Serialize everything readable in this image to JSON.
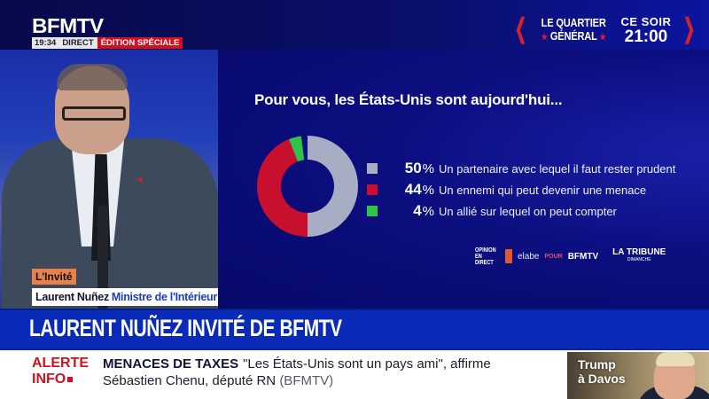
{
  "header": {
    "logo": "BFMTV",
    "time": "19:34",
    "live_label": "DIRECT",
    "edition_label": "ÉDITION SPÉCIALE",
    "promo": {
      "show_line1": "LE QUARTIER",
      "show_line2": "GÉNÉRAL",
      "when_line1": "CE SOIR",
      "when_line2": "21:00",
      "chevron_left": "❮",
      "chevron_right": "❯",
      "star": "★"
    }
  },
  "guest": {
    "tag": "L'Invité",
    "name": "Laurent Nuñez",
    "role": "Ministre de l'Intérieur"
  },
  "poll": {
    "question": "Pour vous, les États-Unis sont aujourd'hui...",
    "sources": {
      "opinion_line1": "OPINION",
      "opinion_line2": "EN DIRECT",
      "elabe": "elabe",
      "pour": "POUR",
      "bfmtv": "BFMTV",
      "tribune": "LA TRIBUNE",
      "tribune_sub": "DIMANCHE"
    }
  },
  "chart_data": {
    "type": "pie",
    "title": "Pour vous, les États-Unis sont aujourd'hui...",
    "donut": true,
    "legend_position": "right",
    "categories": [
      "Un partenaire avec lequel il faut rester prudent",
      "Un ennemi qui peut devenir une menace",
      "Un allié sur lequel on peut compter"
    ],
    "values": [
      50,
      44,
      4
    ],
    "value_labels": [
      "50",
      "44",
      "4"
    ],
    "unit": "%",
    "colors": [
      "#a7aec4",
      "#c8102e",
      "#2fc34a"
    ]
  },
  "headline": "LAURENT NUÑEZ INVITÉ DE BFMTV",
  "ticker": {
    "alert_line1": "ALERTE",
    "alert_line2": "INFO",
    "topic": "MENACES DE TAXES",
    "text_line1": "\"Les États-Unis sont un pays ami\", affirme",
    "text_line2": "Sébastien Chenu, député RN",
    "source": "(BFMTV)"
  },
  "thumbnail": {
    "line1": "Trump",
    "line2": "à Davos"
  }
}
